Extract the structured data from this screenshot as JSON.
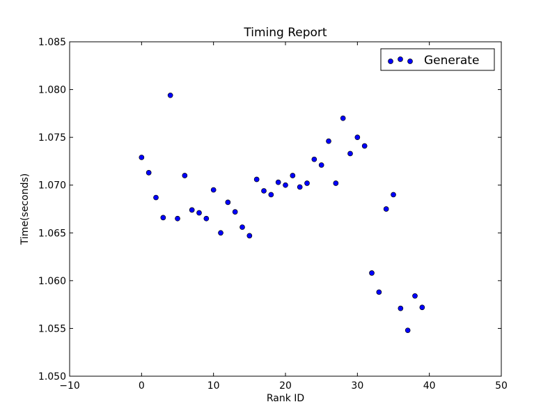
{
  "chart_data": {
    "type": "scatter",
    "title": "Timing Report",
    "xlabel": "Rank ID",
    "ylabel": "Time(seconds)",
    "xlim": [
      -10,
      50
    ],
    "ylim": [
      1.05,
      1.085
    ],
    "xticks": [
      -10,
      0,
      10,
      20,
      30,
      40,
      50
    ],
    "xtick_labels": [
      "−10",
      "0",
      "10",
      "20",
      "30",
      "40",
      "50"
    ],
    "yticks": [
      1.05,
      1.055,
      1.06,
      1.065,
      1.07,
      1.075,
      1.08,
      1.085
    ],
    "ytick_labels": [
      "1.050",
      "1.055",
      "1.060",
      "1.065",
      "1.070",
      "1.075",
      "1.080",
      "1.085"
    ],
    "grid": false,
    "legend_position": "top-right",
    "series": [
      {
        "name": "Generate",
        "color": "#0000ff",
        "x": [
          0,
          1,
          2,
          3,
          4,
          5,
          6,
          7,
          8,
          9,
          10,
          11,
          12,
          13,
          14,
          15,
          16,
          17,
          18,
          19,
          20,
          21,
          22,
          23,
          24,
          25,
          26,
          27,
          28,
          29,
          30,
          31,
          32,
          33,
          34,
          35,
          36,
          37,
          38,
          39
        ],
        "y": [
          1.0729,
          1.0713,
          1.0687,
          1.0666,
          1.0794,
          1.0665,
          1.071,
          1.0674,
          1.0671,
          1.0665,
          1.0695,
          1.065,
          1.0682,
          1.0672,
          1.0656,
          1.0647,
          1.0706,
          1.0694,
          1.069,
          1.0703,
          1.07,
          1.071,
          1.0698,
          1.0702,
          1.0727,
          1.0721,
          1.0746,
          1.0702,
          1.077,
          1.0733,
          1.075,
          1.0741,
          1.0608,
          1.0588,
          1.0675,
          1.069,
          1.0571,
          1.0548,
          1.0584,
          1.0572
        ]
      }
    ]
  }
}
